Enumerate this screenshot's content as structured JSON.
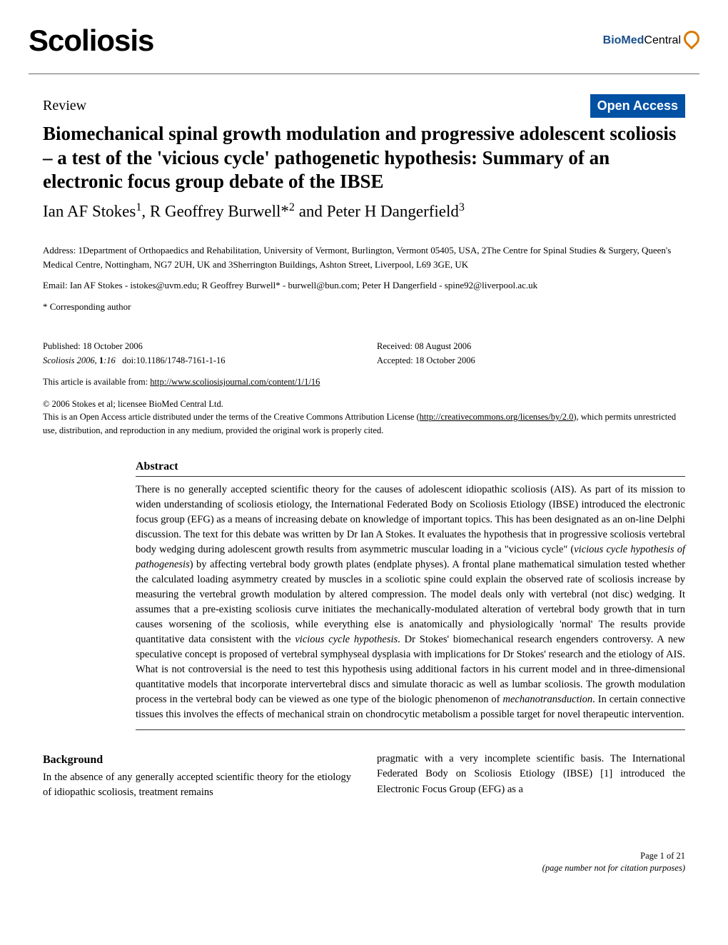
{
  "journal": {
    "name": "Scoliosis",
    "publisher_bold": "BioMed",
    "publisher_normal": " Central"
  },
  "article": {
    "type": "Review",
    "open_access_label": "Open Access",
    "title": "Biomechanical spinal growth modulation and progressive adolescent scoliosis – a test of the 'vicious cycle' pathogenetic hypothesis: Summary of an electronic focus group debate of the IBSE",
    "author1": "Ian AF Stokes",
    "author1_sup": "1",
    "author2": "R Geoffrey Burwell*",
    "author2_sup": "2",
    "author3": "Peter H Dangerfield",
    "author3_sup": "3",
    "authors_joiner": " and ",
    "address_label": "Address: ",
    "affiliations": "1Department of Orthopaedics and Rehabilitation, University of Vermont, Burlington, Vermont 05405, USA, 2The Centre for Spinal Studies & Surgery, Queen's Medical Centre, Nottingham, NG7 2UH, UK and 3Sherrington Buildings, Ashton Street, Liverpool, L69 3GE, UK",
    "email_label": "Email: ",
    "emails": "Ian AF Stokes - istokes@uvm.edu; R Geoffrey Burwell* - burwell@bun.com; Peter H Dangerfield - spine92@liverpool.ac.uk",
    "corresponding": "* Corresponding author"
  },
  "pub": {
    "published": "Published: 18 October 2006",
    "journal_ref_italic": "Scoliosis",
    "journal_ref_rest": " 2006, ",
    "volume": "1",
    "issue_page": ":16",
    "doi": "doi:10.1186/1748-7161-1-16",
    "received": "Received: 08 August 2006",
    "accepted": "Accepted: 18 October 2006",
    "available_prefix": "This article is available from: ",
    "available_url": "http://www.scoliosisjournal.com/content/1/1/16",
    "copyright": "© 2006 Stokes et al; licensee BioMed Central Ltd.",
    "license_pre": "This is an Open Access article distributed under the terms of the Creative Commons Attribution License (",
    "license_url": "http://creativecommons.org/licenses/by/2.0",
    "license_post": "), which permits unrestricted use, distribution, and reproduction in any medium, provided the original work is properly cited."
  },
  "abstract": {
    "heading": "Abstract",
    "text_part1": "There is no generally accepted scientific theory for the causes of adolescent idiopathic scoliosis (AIS). As part of its mission to widen understanding of scoliosis etiology, the International Federated Body on Scoliosis Etiology (IBSE) introduced the electronic focus group (EFG) as a means of increasing debate on knowledge of important topics. This has been designated as an on-line Delphi discussion. The text for this debate was written by Dr Ian A Stokes. It evaluates the hypothesis that in progressive scoliosis vertebral body wedging during adolescent growth results from asymmetric muscular loading in a \"vicious cycle\" (",
    "italic1": "vicious cycle hypothesis of pathogenesis",
    "text_part2": ") by affecting vertebral body growth plates (endplate physes). A frontal plane mathematical simulation tested whether the calculated loading asymmetry created by muscles in a scoliotic spine could explain the observed rate of scoliosis increase by measuring the vertebral growth modulation by altered compression. The model deals only with vertebral (not disc) wedging. It assumes that a pre-existing scoliosis curve initiates the mechanically-modulated alteration of vertebral body growth that in turn causes worsening of the scoliosis, while everything else is anatomically and physiologically 'normal' The results provide quantitative data consistent with the ",
    "italic2": "vicious cycle hypothesis",
    "text_part3": ". Dr Stokes' biomechanical research engenders controversy. A new speculative concept is proposed of vertebral symphyseal dysplasia with implications for Dr Stokes' research and the etiology of AIS. What is not controversial is the need to test this hypothesis using additional factors in his current model and in three-dimensional quantitative models that incorporate intervertebral discs and simulate thoracic as well as lumbar scoliosis. The growth modulation process in the vertebral body can be viewed as one type of the biologic phenomenon of ",
    "italic3": "mechanotransduction",
    "text_part4": ". In certain connective tissues this involves the effects of mechanical strain on chondrocytic metabolism a possible target for novel therapeutic intervention."
  },
  "body": {
    "background_heading": "Background",
    "col1_text": "In the absence of any generally accepted scientific theory for the etiology of idiopathic scoliosis, treatment remains",
    "col2_text": "pragmatic with a very incomplete scientific basis. The International Federated Body on Scoliosis Etiology (IBSE) [1] introduced the Electronic Focus Group (EFG) as a"
  },
  "footer": {
    "page": "Page 1 of 21",
    "purposes": "(page number not for citation purposes)"
  },
  "colors": {
    "open_access_bg": "#0050a4",
    "biomed_blue": "#1a4f8c",
    "biomed_orange": "#d97a00"
  }
}
